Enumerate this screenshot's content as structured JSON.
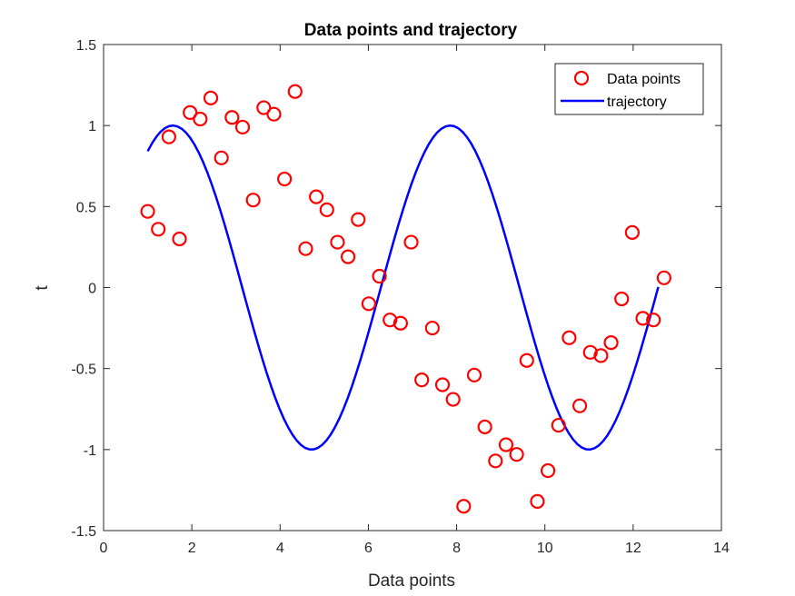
{
  "chart_data": {
    "type": "scatter",
    "title": "Data points and trajectory",
    "xlabel": "Data points",
    "ylabel": "t",
    "xlim": [
      0,
      14
    ],
    "ylim": [
      -1.5,
      1.5
    ],
    "xticks": [
      "0",
      "2",
      "4",
      "6",
      "8",
      "10",
      "12",
      "14"
    ],
    "yticks": [
      "-1.5",
      "-1",
      "-0.5",
      "0",
      "0.5",
      "1",
      "1.5"
    ],
    "xtick_values": [
      0,
      2,
      4,
      6,
      8,
      10,
      12,
      14
    ],
    "ytick_values": [
      -1.5,
      -1,
      -0.5,
      0,
      0.5,
      1,
      1.5
    ],
    "grid": false,
    "legend_placement": "top-right",
    "colors": {
      "points": "#ff0000",
      "line": "#0000ff",
      "axes": "#262626"
    },
    "series": [
      {
        "name": "Data points",
        "kind": "scatter",
        "marker": "circle",
        "x": [
          1.0,
          1.24,
          1.48,
          1.72,
          1.96,
          2.19,
          2.43,
          2.67,
          2.91,
          3.15,
          3.39,
          3.63,
          3.86,
          4.1,
          4.34,
          4.58,
          4.82,
          5.06,
          5.3,
          5.54,
          5.77,
          6.01,
          6.25,
          6.49,
          6.73,
          6.97,
          7.21,
          7.45,
          7.68,
          7.92,
          8.16,
          8.4,
          8.64,
          8.88,
          9.12,
          9.36,
          9.59,
          9.83,
          10.07,
          10.31,
          10.55,
          10.79,
          11.03,
          11.27,
          11.5,
          11.74,
          11.98,
          12.22,
          12.46,
          12.7
        ],
        "y": [
          0.47,
          0.36,
          0.93,
          0.3,
          1.08,
          1.04,
          1.17,
          0.8,
          1.05,
          0.99,
          0.54,
          1.11,
          1.07,
          0.67,
          1.21,
          0.24,
          0.56,
          0.48,
          0.28,
          0.19,
          0.42,
          -0.1,
          0.07,
          -0.2,
          -0.22,
          0.28,
          -0.57,
          -0.25,
          -0.6,
          -0.69,
          -1.35,
          -0.54,
          -0.86,
          -1.07,
          -0.97,
          -1.03,
          -0.45,
          -1.32,
          -1.13,
          -0.85,
          -0.31,
          -0.73,
          -0.4,
          -0.42,
          -0.34,
          -0.07,
          0.34,
          -0.19,
          -0.2,
          0.06
        ]
      },
      {
        "name": "trajectory",
        "kind": "line",
        "function": "sin",
        "x_range": [
          1.0,
          12.57
        ],
        "samples": 120
      }
    ]
  }
}
